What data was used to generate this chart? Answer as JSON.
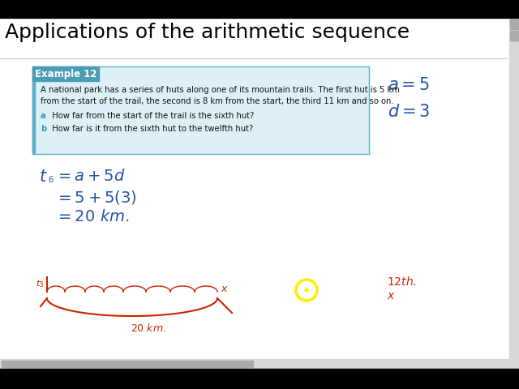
{
  "title": "Applications of the arithmetic sequence",
  "title_fontsize": 18,
  "title_color": "#000000",
  "bg_color": "#ffffff",
  "example_box": {
    "label": "Example 12",
    "label_bg": "#4a9db5",
    "label_color": "#ffffff",
    "box_bg": "#ddf0f5",
    "box_border": "#5aafca",
    "text_line1": "A national park has a series of huts along one of its mountain trails. The first hut is 5 km",
    "text_line2": "from the start of the trail, the second is 8 km from the start, the third 11 km and so on.",
    "text_a_label": "a",
    "text_a": "  How far from the start of the trail is the sixth hut?",
    "text_b_label": "b",
    "text_b": "  How far is it from the sixth hut to the twelfth hut?"
  },
  "blue_color": "#2255aa",
  "red_color": "#cc2200",
  "yellow_color": "#ffee00"
}
